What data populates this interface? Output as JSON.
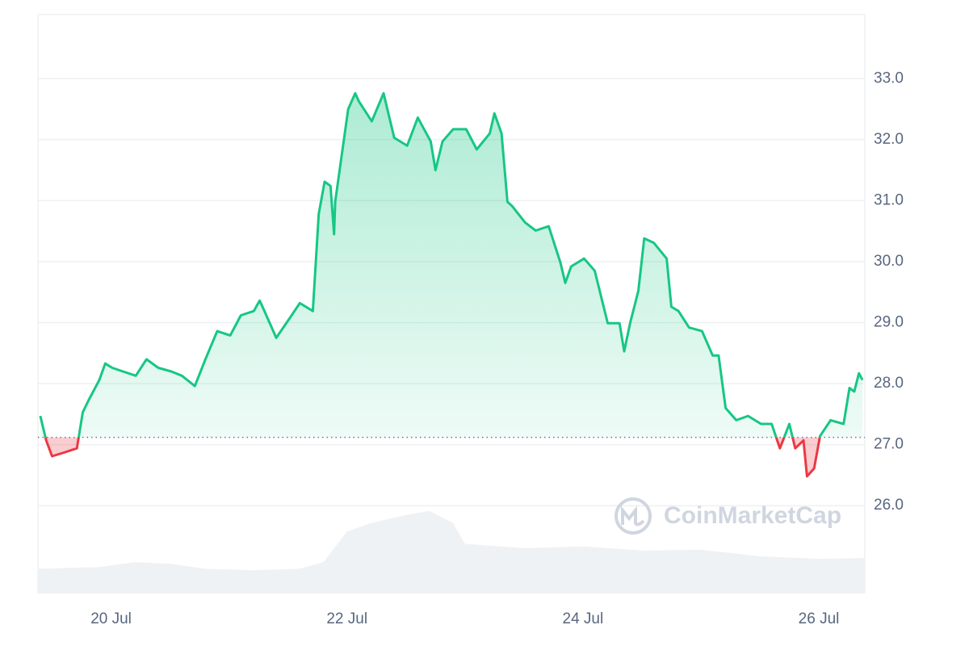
{
  "chart_data": {
    "type": "baseline-line",
    "watermark": "CoinMarketCap",
    "x": [
      19.4,
      19.45,
      19.5,
      19.6,
      19.71,
      19.76,
      19.81,
      19.9,
      19.95,
      20.01,
      20.1,
      20.21,
      20.3,
      20.4,
      20.51,
      20.6,
      20.71,
      20.8,
      20.9,
      21.01,
      21.1,
      21.21,
      21.26,
      21.3,
      21.4,
      21.51,
      21.6,
      21.71,
      21.76,
      21.81,
      21.86,
      21.89,
      21.9,
      22.01,
      22.07,
      22.1,
      22.21,
      22.31,
      22.4,
      22.51,
      22.6,
      22.71,
      22.75,
      22.81,
      22.9,
      23.01,
      23.1,
      23.21,
      23.25,
      23.31,
      23.36,
      23.4,
      23.51,
      23.6,
      23.71,
      23.81,
      23.85,
      23.9,
      24.01,
      24.1,
      24.21,
      24.31,
      24.35,
      24.4,
      24.47,
      24.52,
      24.6,
      24.71,
      24.75,
      24.81,
      24.9,
      25.01,
      25.1,
      25.15,
      25.21,
      25.3,
      25.4,
      25.51,
      25.6,
      25.67,
      25.71,
      25.75,
      25.8,
      25.87,
      25.9,
      25.96,
      26.01,
      26.1,
      26.21,
      26.26,
      26.3,
      26.34,
      26.37
    ],
    "values": [
      27.47,
      27.07,
      26.81,
      26.87,
      26.94,
      27.53,
      27.73,
      28.06,
      28.33,
      28.26,
      28.2,
      28.13,
      28.4,
      28.26,
      28.2,
      28.13,
      27.96,
      28.4,
      28.86,
      28.79,
      29.12,
      29.19,
      29.36,
      29.19,
      28.75,
      29.06,
      29.32,
      29.19,
      30.78,
      31.31,
      31.24,
      30.45,
      30.98,
      32.5,
      32.76,
      32.63,
      32.3,
      32.76,
      32.03,
      31.9,
      32.36,
      31.97,
      31.5,
      31.97,
      32.17,
      32.17,
      31.84,
      32.1,
      32.43,
      32.1,
      30.98,
      30.91,
      30.64,
      30.51,
      30.58,
      29.98,
      29.65,
      29.92,
      30.05,
      29.85,
      28.99,
      28.99,
      28.53,
      28.99,
      29.52,
      30.38,
      30.31,
      30.05,
      29.26,
      29.19,
      28.92,
      28.86,
      28.46,
      28.46,
      27.6,
      27.4,
      27.47,
      27.34,
      27.34,
      26.94,
      27.14,
      27.34,
      26.94,
      27.07,
      26.48,
      26.61,
      27.14,
      27.4,
      27.34,
      27.93,
      27.87,
      28.17,
      28.06
    ],
    "baseline": 27.12,
    "up_color": "#16c784",
    "down_color": "#ea3943",
    "xlim": [
      19.38,
      26.39
    ],
    "xticks": [
      {
        "value": 20,
        "label": "20 Jul"
      },
      {
        "value": 22,
        "label": "22 Jul"
      },
      {
        "value": 24,
        "label": "24 Jul"
      },
      {
        "value": 26,
        "label": "26 Jul"
      }
    ],
    "ylim": [
      24.56,
      34.05
    ],
    "yticks": [
      {
        "value": 26,
        "label": "26.0"
      },
      {
        "value": 27,
        "label": "27.0"
      },
      {
        "value": 28,
        "label": "28.0"
      },
      {
        "value": 29,
        "label": "29.0"
      },
      {
        "value": 30,
        "label": "30.0"
      },
      {
        "value": 31,
        "label": "31.0"
      },
      {
        "value": 32,
        "label": "32.0"
      },
      {
        "value": 33,
        "label": "33.0"
      }
    ],
    "grid": true,
    "volume": {
      "axis": "y2",
      "color": "#eff2f5",
      "x": [
        19.38,
        19.9,
        20.2,
        20.5,
        20.8,
        21.2,
        21.6,
        21.8,
        22.0,
        22.2,
        22.5,
        22.7,
        22.9,
        23.0,
        23.5,
        24.0,
        24.5,
        25.0,
        25.5,
        26.0,
        26.39
      ],
      "values": [
        30,
        32,
        38,
        36,
        30,
        28,
        30,
        38,
        75,
        85,
        95,
        100,
        85,
        60,
        55,
        57,
        52,
        53,
        45,
        42,
        43
      ]
    },
    "y2lim": [
      0,
      700
    ]
  }
}
